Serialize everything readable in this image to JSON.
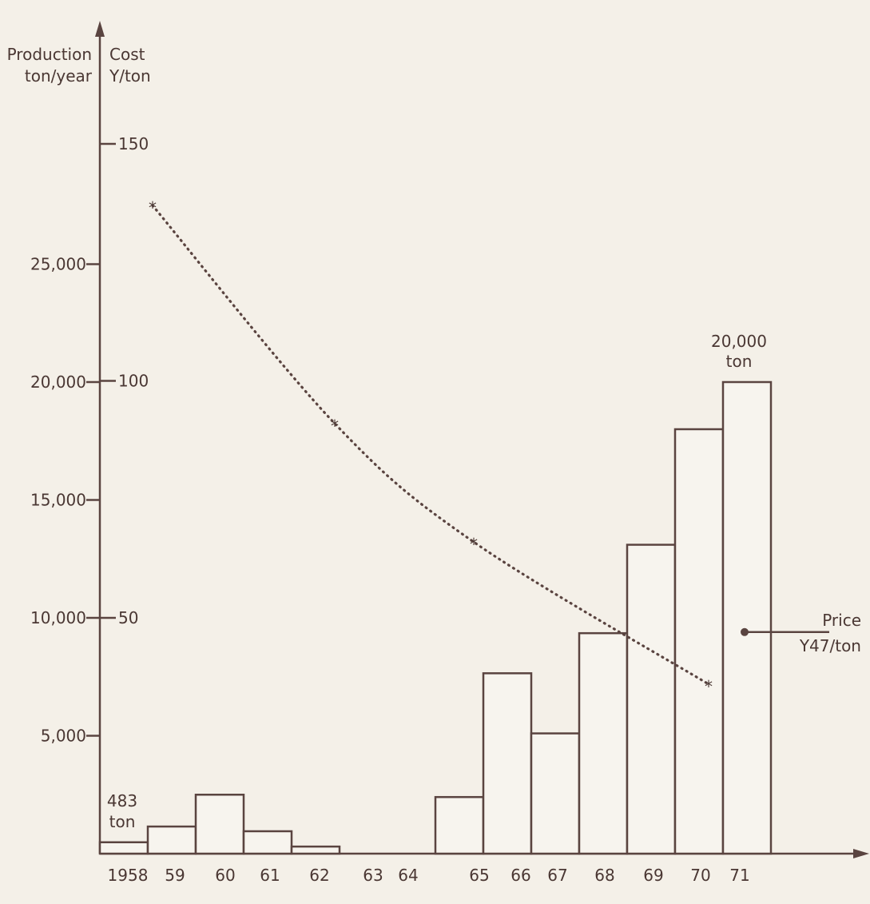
{
  "chart_data": {
    "type": "bar",
    "left_axis": {
      "title_line1": "Production",
      "title_line2": "ton/year",
      "ticks": [
        "5,000",
        "10,000",
        "15,000",
        "20,000",
        "25,000"
      ],
      "tick_values": [
        5000,
        10000,
        15000,
        20000,
        25000
      ]
    },
    "right_axis": {
      "title_line1": "Cost",
      "title_line2": "Y/ton",
      "ticks": [
        "50",
        "100",
        "150"
      ],
      "tick_values": [
        50,
        100,
        150
      ]
    },
    "x_tick_labels": [
      "1958",
      "59",
      "60",
      "61",
      "62",
      "63",
      "64",
      "65",
      "66",
      "67",
      "68",
      "69",
      "70",
      "71"
    ],
    "bars": [
      {
        "year": 1958,
        "value": 483
      },
      {
        "year": 1959,
        "value": 1150
      },
      {
        "year": 1960,
        "value": 2500
      },
      {
        "year": 1961,
        "value": 950
      },
      {
        "year": 1962,
        "value": 300
      },
      {
        "year": 1963,
        "value": 0
      },
      {
        "year": 1964,
        "value": 0
      },
      {
        "year": 1965,
        "value": 2400
      },
      {
        "year": 1966,
        "value": 7650
      },
      {
        "year": 1967,
        "value": 5100
      },
      {
        "year": 1968,
        "value": 9350
      },
      {
        "year": 1969,
        "value": 13100
      },
      {
        "year": 1970,
        "value": 18000
      },
      {
        "year": 1971,
        "value": 20000
      }
    ],
    "cost_series": [
      {
        "year": 1958.6,
        "value": 137
      },
      {
        "year": 1962.4,
        "value": 91
      },
      {
        "year": 1965.3,
        "value": 66
      },
      {
        "year": 1970.2,
        "value": 36
      }
    ],
    "annotations": {
      "first_bar": {
        "line1": "483",
        "line2": "ton"
      },
      "last_bar": {
        "line1": "20,000",
        "line2": "ton"
      },
      "price": {
        "line1": "Price",
        "line2": "Y47/ton",
        "value": 47
      }
    }
  }
}
